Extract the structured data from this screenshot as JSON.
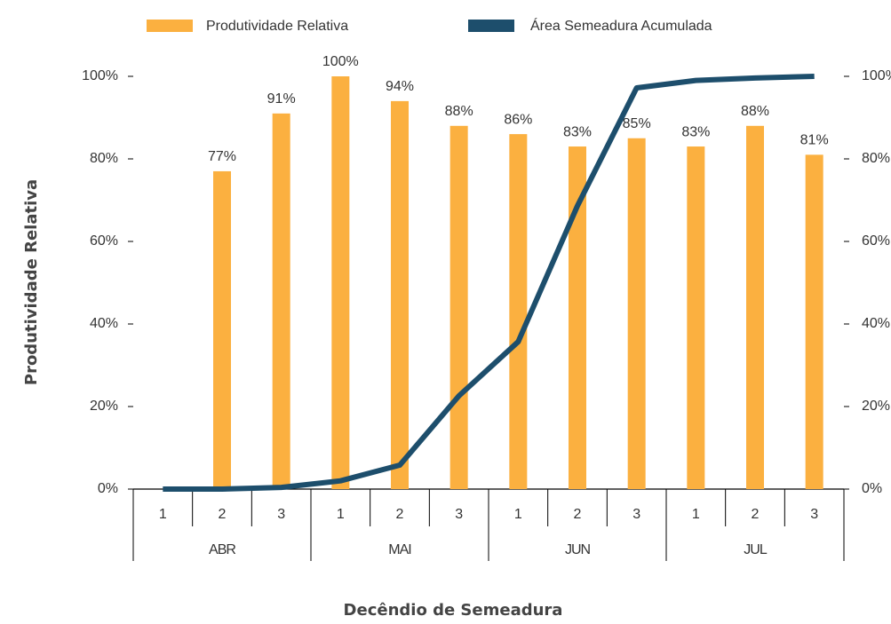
{
  "chart_data": {
    "type": "bar",
    "y_label": "Produtividade Relativa",
    "x_label": "Decêndio de Semeadura",
    "categories": [
      "1",
      "2",
      "3",
      "1",
      "2",
      "3",
      "1",
      "2",
      "3",
      "1",
      "2",
      "3"
    ],
    "groups": [
      "ABR",
      "MAI",
      "JUN",
      "JUL"
    ],
    "series": [
      {
        "name": "Produtividade Relativa",
        "type": "bar",
        "color": "#fbb040",
        "values": [
          null,
          77,
          91,
          100,
          94,
          88,
          86,
          83,
          85,
          83,
          88,
          81
        ],
        "value_labels": [
          null,
          "77%",
          "91%",
          "100%",
          "94%",
          "88%",
          "86%",
          "83%",
          "85%",
          "83%",
          "88%",
          "81%"
        ]
      },
      {
        "name": "Área Semeadura Acumulada",
        "type": "line",
        "axis": "y2",
        "color": "#1d4e6c",
        "values": [
          0,
          0,
          0.4,
          2,
          5.8,
          22.6,
          35.7,
          68.6,
          97.2,
          99,
          99.6,
          100
        ]
      }
    ],
    "ylim": [
      0,
      100
    ],
    "yticks": [
      {
        "value": 0,
        "label": "0%"
      },
      {
        "value": 20,
        "label": "20%"
      },
      {
        "value": 40,
        "label": "40%"
      },
      {
        "value": 60,
        "label": "60%"
      },
      {
        "value": 80,
        "label": "80%"
      },
      {
        "value": 100,
        "label": "100%"
      }
    ],
    "y2lim": [
      0,
      100
    ],
    "y2ticks": [
      {
        "value": 0,
        "label": "0%"
      },
      {
        "value": 20,
        "label": "20%"
      },
      {
        "value": 40,
        "label": "40%"
      },
      {
        "value": 60,
        "label": "60%"
      },
      {
        "value": 80,
        "label": "80%"
      },
      {
        "value": 100,
        "label": "100%"
      }
    ],
    "legend": "top",
    "grid": false
  }
}
